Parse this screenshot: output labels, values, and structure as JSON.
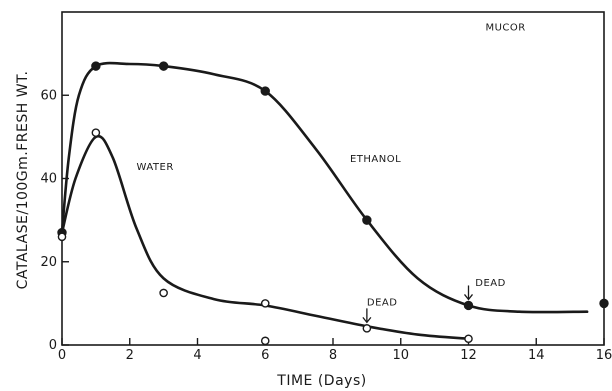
{
  "chart_data": {
    "type": "line",
    "title": "",
    "xlabel": "TIME (Days)",
    "ylabel": "CATALASE/100Gm.FRESH WT.",
    "xlim": [
      0,
      16
    ],
    "ylim": [
      0,
      80
    ],
    "x_ticks": [
      "0",
      "2",
      "4",
      "6",
      "8",
      "10",
      "12",
      "14",
      "16"
    ],
    "y_ticks": [
      "0",
      "20",
      "40",
      "60"
    ],
    "grid": false,
    "colors": {
      "ink": "#1a1a1a",
      "background": "#ffffff"
    },
    "series": [
      {
        "name": "ETHANOL",
        "marker": "filled-circle",
        "points": [
          [
            0,
            27
          ],
          [
            1,
            67
          ],
          [
            3,
            67
          ],
          [
            6,
            61
          ],
          [
            9,
            30
          ],
          [
            12,
            9.5
          ],
          [
            16,
            10
          ]
        ],
        "curve": [
          [
            0,
            27
          ],
          [
            0.2,
            45
          ],
          [
            0.5,
            60
          ],
          [
            1,
            67
          ],
          [
            2,
            67.5
          ],
          [
            3,
            67
          ],
          [
            4.5,
            65
          ],
          [
            6,
            61
          ],
          [
            7.5,
            47
          ],
          [
            9,
            30
          ],
          [
            10.5,
            16
          ],
          [
            12,
            9.5
          ],
          [
            13.5,
            8
          ],
          [
            15.5,
            8
          ]
        ]
      },
      {
        "name": "WATER",
        "marker": "open-circle",
        "points": [
          [
            0,
            26
          ],
          [
            1,
            51
          ],
          [
            3,
            12.5
          ],
          [
            6,
            10
          ],
          [
            6,
            1
          ],
          [
            9,
            4
          ],
          [
            12,
            1.5
          ]
        ],
        "curve": [
          [
            0,
            27
          ],
          [
            0.4,
            40
          ],
          [
            1,
            50
          ],
          [
            1.5,
            45
          ],
          [
            2.2,
            28
          ],
          [
            3,
            16
          ],
          [
            4.5,
            11
          ],
          [
            6,
            9.5
          ],
          [
            7.5,
            7
          ],
          [
            9,
            4.5
          ],
          [
            10.5,
            2.5
          ],
          [
            12,
            1.5
          ]
        ]
      }
    ],
    "annotations": [
      {
        "text": "MUCOR"
      },
      {
        "text": "WATER"
      },
      {
        "text": "ETHANOL"
      },
      {
        "text": "DEAD",
        "arrow_to": [
          9,
          4
        ]
      },
      {
        "text": "DEAD",
        "arrow_to": [
          12,
          9.5
        ]
      }
    ]
  }
}
